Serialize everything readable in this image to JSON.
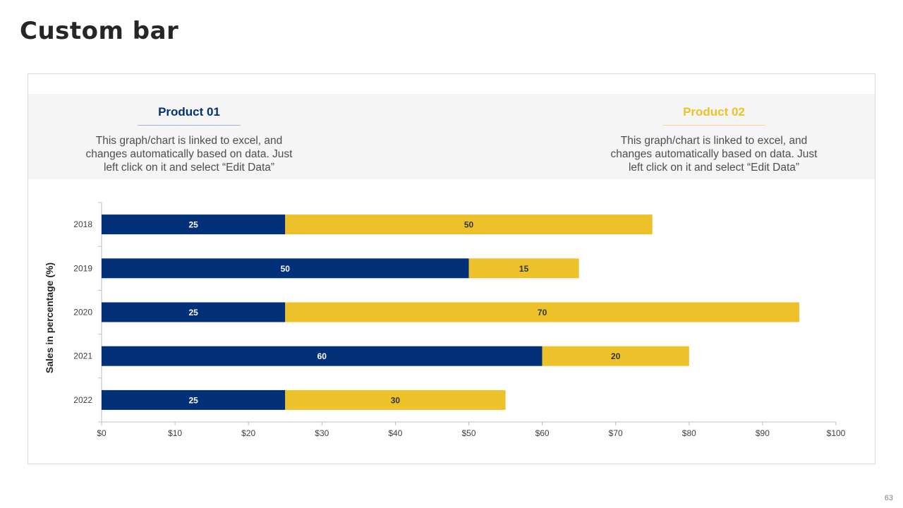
{
  "page": {
    "title": "Custom bar",
    "page_number": "63"
  },
  "products": [
    {
      "name": "Product 01",
      "color": "#023079",
      "description": "This graph/chart is linked to excel, and changes automatically based on data. Just left click on it and select “Edit Data”"
    },
    {
      "name": "Product 02",
      "color": "#ecc12a",
      "description": "This graph/chart is linked to excel, and changes automatically based on data. Just left click on it and select “Edit Data”"
    }
  ],
  "chart_data": {
    "type": "bar",
    "orientation": "horizontal",
    "stacked": true,
    "categories": [
      "2018",
      "2019",
      "2020",
      "2021",
      "2022"
    ],
    "series": [
      {
        "name": "Product 01",
        "color": "#023079",
        "label_color": "#ffffff",
        "values": [
          25,
          50,
          25,
          60,
          25
        ]
      },
      {
        "name": "Product 02",
        "color": "#ecc12a",
        "label_color": "#333333",
        "values": [
          50,
          15,
          70,
          20,
          30
        ]
      }
    ],
    "xlim": [
      0,
      100
    ],
    "xticks": [
      0,
      10,
      20,
      30,
      40,
      50,
      60,
      70,
      80,
      90,
      100
    ],
    "xtick_labels": [
      "$0",
      "$10",
      "$20",
      "$30",
      "$40",
      "$50",
      "$60",
      "$70",
      "$80",
      "$90",
      "$100"
    ],
    "ylabel": "Sales in percentage (%)",
    "xlabel": "",
    "grid": false,
    "data_labels": true
  }
}
